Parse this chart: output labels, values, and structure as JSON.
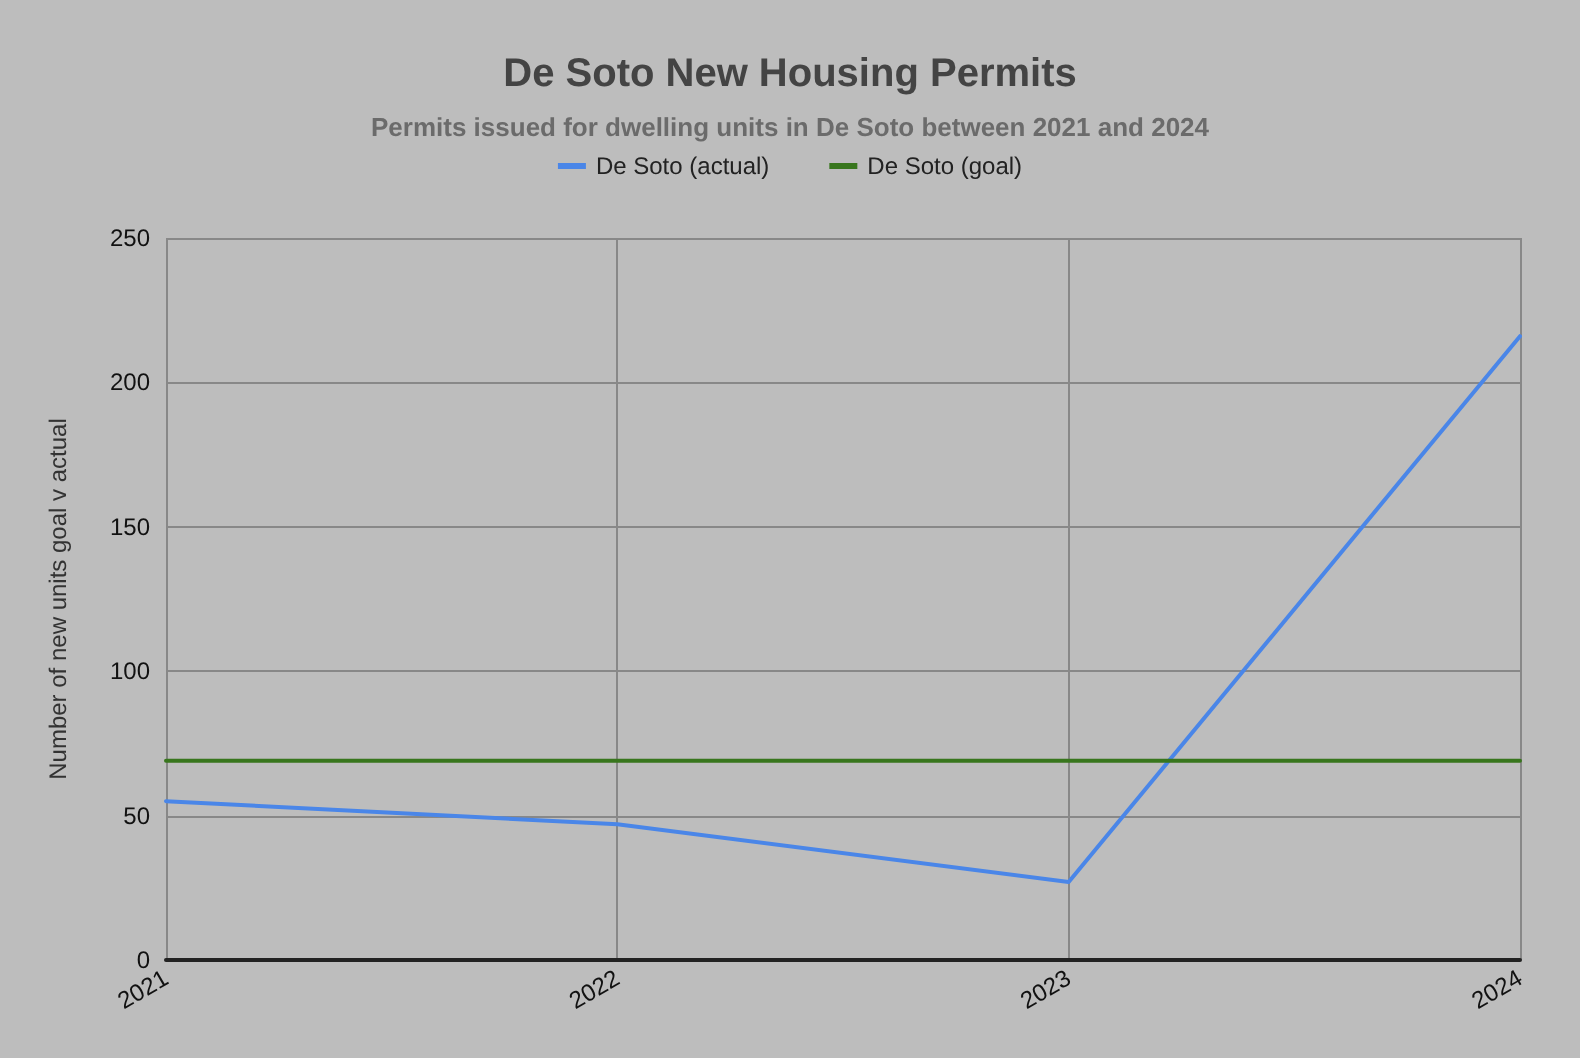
{
  "chart_data": {
    "type": "line",
    "title": "De Soto New Housing Permits",
    "subtitle": "Permits issued for dwelling units in De Soto between 2021 and 2024",
    "ylabel": "Number of new units goal v actual",
    "categories": [
      "2021",
      "2022",
      "2023",
      "2024"
    ],
    "series": [
      {
        "name": "De Soto (actual)",
        "color": "#4a86e8",
        "values": [
          55,
          47,
          27,
          216
        ]
      },
      {
        "name": "De Soto (goal)",
        "color": "#38761d",
        "values": [
          69,
          69,
          69,
          69
        ]
      }
    ],
    "ylim": [
      0,
      250
    ],
    "yticks": [
      0,
      50,
      100,
      150,
      200,
      250
    ],
    "grid": true,
    "legend": "top",
    "marker": "none",
    "line_style": "solid"
  }
}
